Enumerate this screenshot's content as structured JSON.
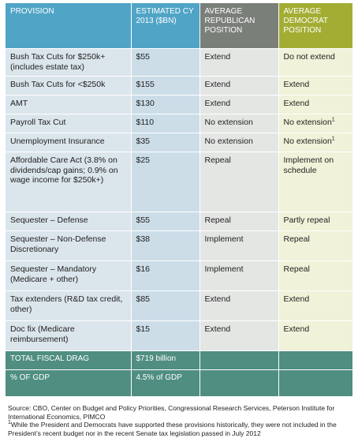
{
  "headers": [
    "PROVISION",
    "ESTIMATED CY 2013 ($BN)",
    "AVERAGE REPUBLICAN POSITION",
    "AVERAGE DEMOCRAT POSITION"
  ],
  "rows": [
    {
      "provision": "Bush Tax Cuts for $250k+ (includes estate tax)",
      "estimate": "$55",
      "republican": "Extend",
      "democrat": "Do not extend",
      "dem_note": ""
    },
    {
      "provision": "Bush Tax Cuts for <$250k",
      "estimate": "$155",
      "republican": "Extend",
      "democrat": "Extend",
      "dem_note": ""
    },
    {
      "provision": "AMT",
      "estimate": "$130",
      "republican": "Extend",
      "democrat": "Extend",
      "dem_note": ""
    },
    {
      "provision": "Payroll Tax Cut",
      "estimate": "$110",
      "republican": "No extension",
      "democrat": "No extension",
      "dem_note": "1"
    },
    {
      "provision": "Unemployment Insurance",
      "estimate": "$35",
      "republican": "No extension",
      "democrat": "No extension",
      "dem_note": "1"
    },
    {
      "provision": "Affordable Care Act (3.8% on dividends/cap gains; 0.9% on wage income for $250k+)",
      "estimate": "$25",
      "republican": "Repeal",
      "democrat": "Implement on schedule",
      "dem_note": ""
    },
    {
      "provision": "Sequester – Defense",
      "estimate": "$55",
      "republican": "Repeal",
      "democrat": "Partly repeal",
      "dem_note": ""
    },
    {
      "provision": "Sequester – Non-Defense Discretionary",
      "estimate": "$38",
      "republican": "Implement",
      "democrat": "Repeal",
      "dem_note": ""
    },
    {
      "provision": "Sequester – Mandatory (Medicare + other)",
      "estimate": "$16",
      "republican": "Implement",
      "democrat": "Repeal",
      "dem_note": ""
    },
    {
      "provision": "Tax extenders (R&D tax credit, other)",
      "estimate": "$85",
      "republican": "Extend",
      "democrat": "Extend",
      "dem_note": ""
    },
    {
      "provision": "Doc fix (Medicare reimbursement)",
      "estimate": "$15",
      "republican": "Extend",
      "democrat": "Extend",
      "dem_note": ""
    }
  ],
  "total": {
    "label": "TOTAL FISCAL DRAG",
    "value": "$719 billion"
  },
  "gdp": {
    "label": "% OF GDP",
    "value": "4.5% of GDP"
  },
  "footnotes": {
    "source": "Source: CBO, Center on Budget and Policy Priorities, Congressional Research Services, Peterson Institute for International Economics, PIMCO",
    "note_marker": "1",
    "note_text": "While the President and Democrats have supported these provisions historically, they were not included in the President’s recent budget nor in the recent Senate tax legislation passed in July 2012"
  },
  "colors": {
    "header_blue": "#50a4c6",
    "header_gray": "#7a7f7a",
    "header_olive": "#a3ad33",
    "total_green": "#4f8e80"
  }
}
